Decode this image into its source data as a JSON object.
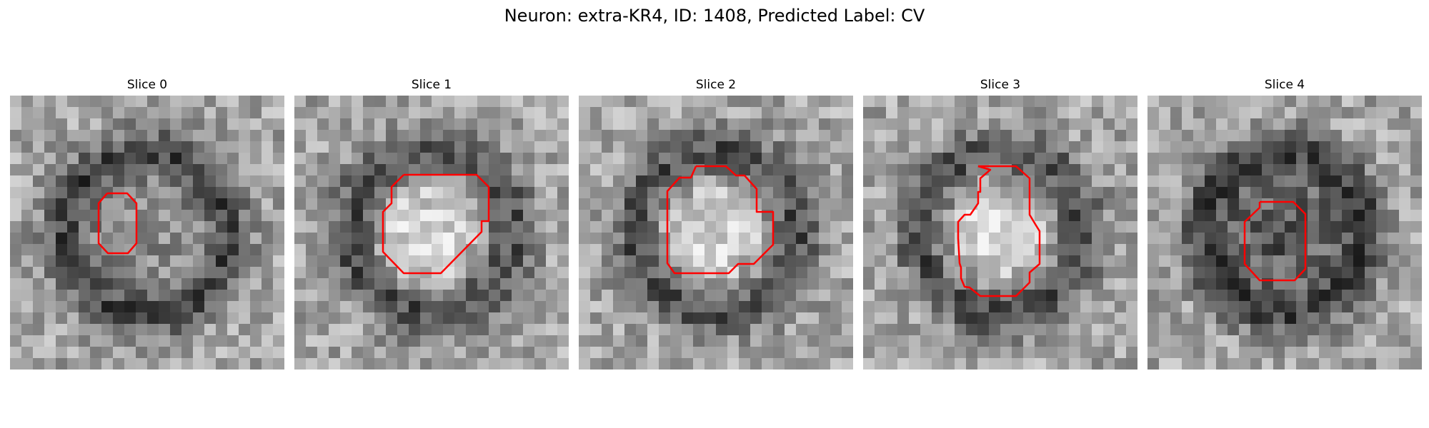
{
  "figure": {
    "title": "Neuron: extra-KR4, ID: 1408, Predicted Label: CV"
  },
  "slices": [
    {
      "title": "Slice 0",
      "contour_color": "#ff0000",
      "center_intensity": "mixed"
    },
    {
      "title": "Slice 1",
      "contour_color": "#ff0000",
      "center_intensity": "bright"
    },
    {
      "title": "Slice 2",
      "contour_color": "#ff0000",
      "center_intensity": "bright"
    },
    {
      "title": "Slice 3",
      "contour_color": "#ff0000",
      "center_intensity": "bright"
    },
    {
      "title": "Slice 4",
      "contour_color": "#ff0000",
      "center_intensity": "dark"
    }
  ]
}
